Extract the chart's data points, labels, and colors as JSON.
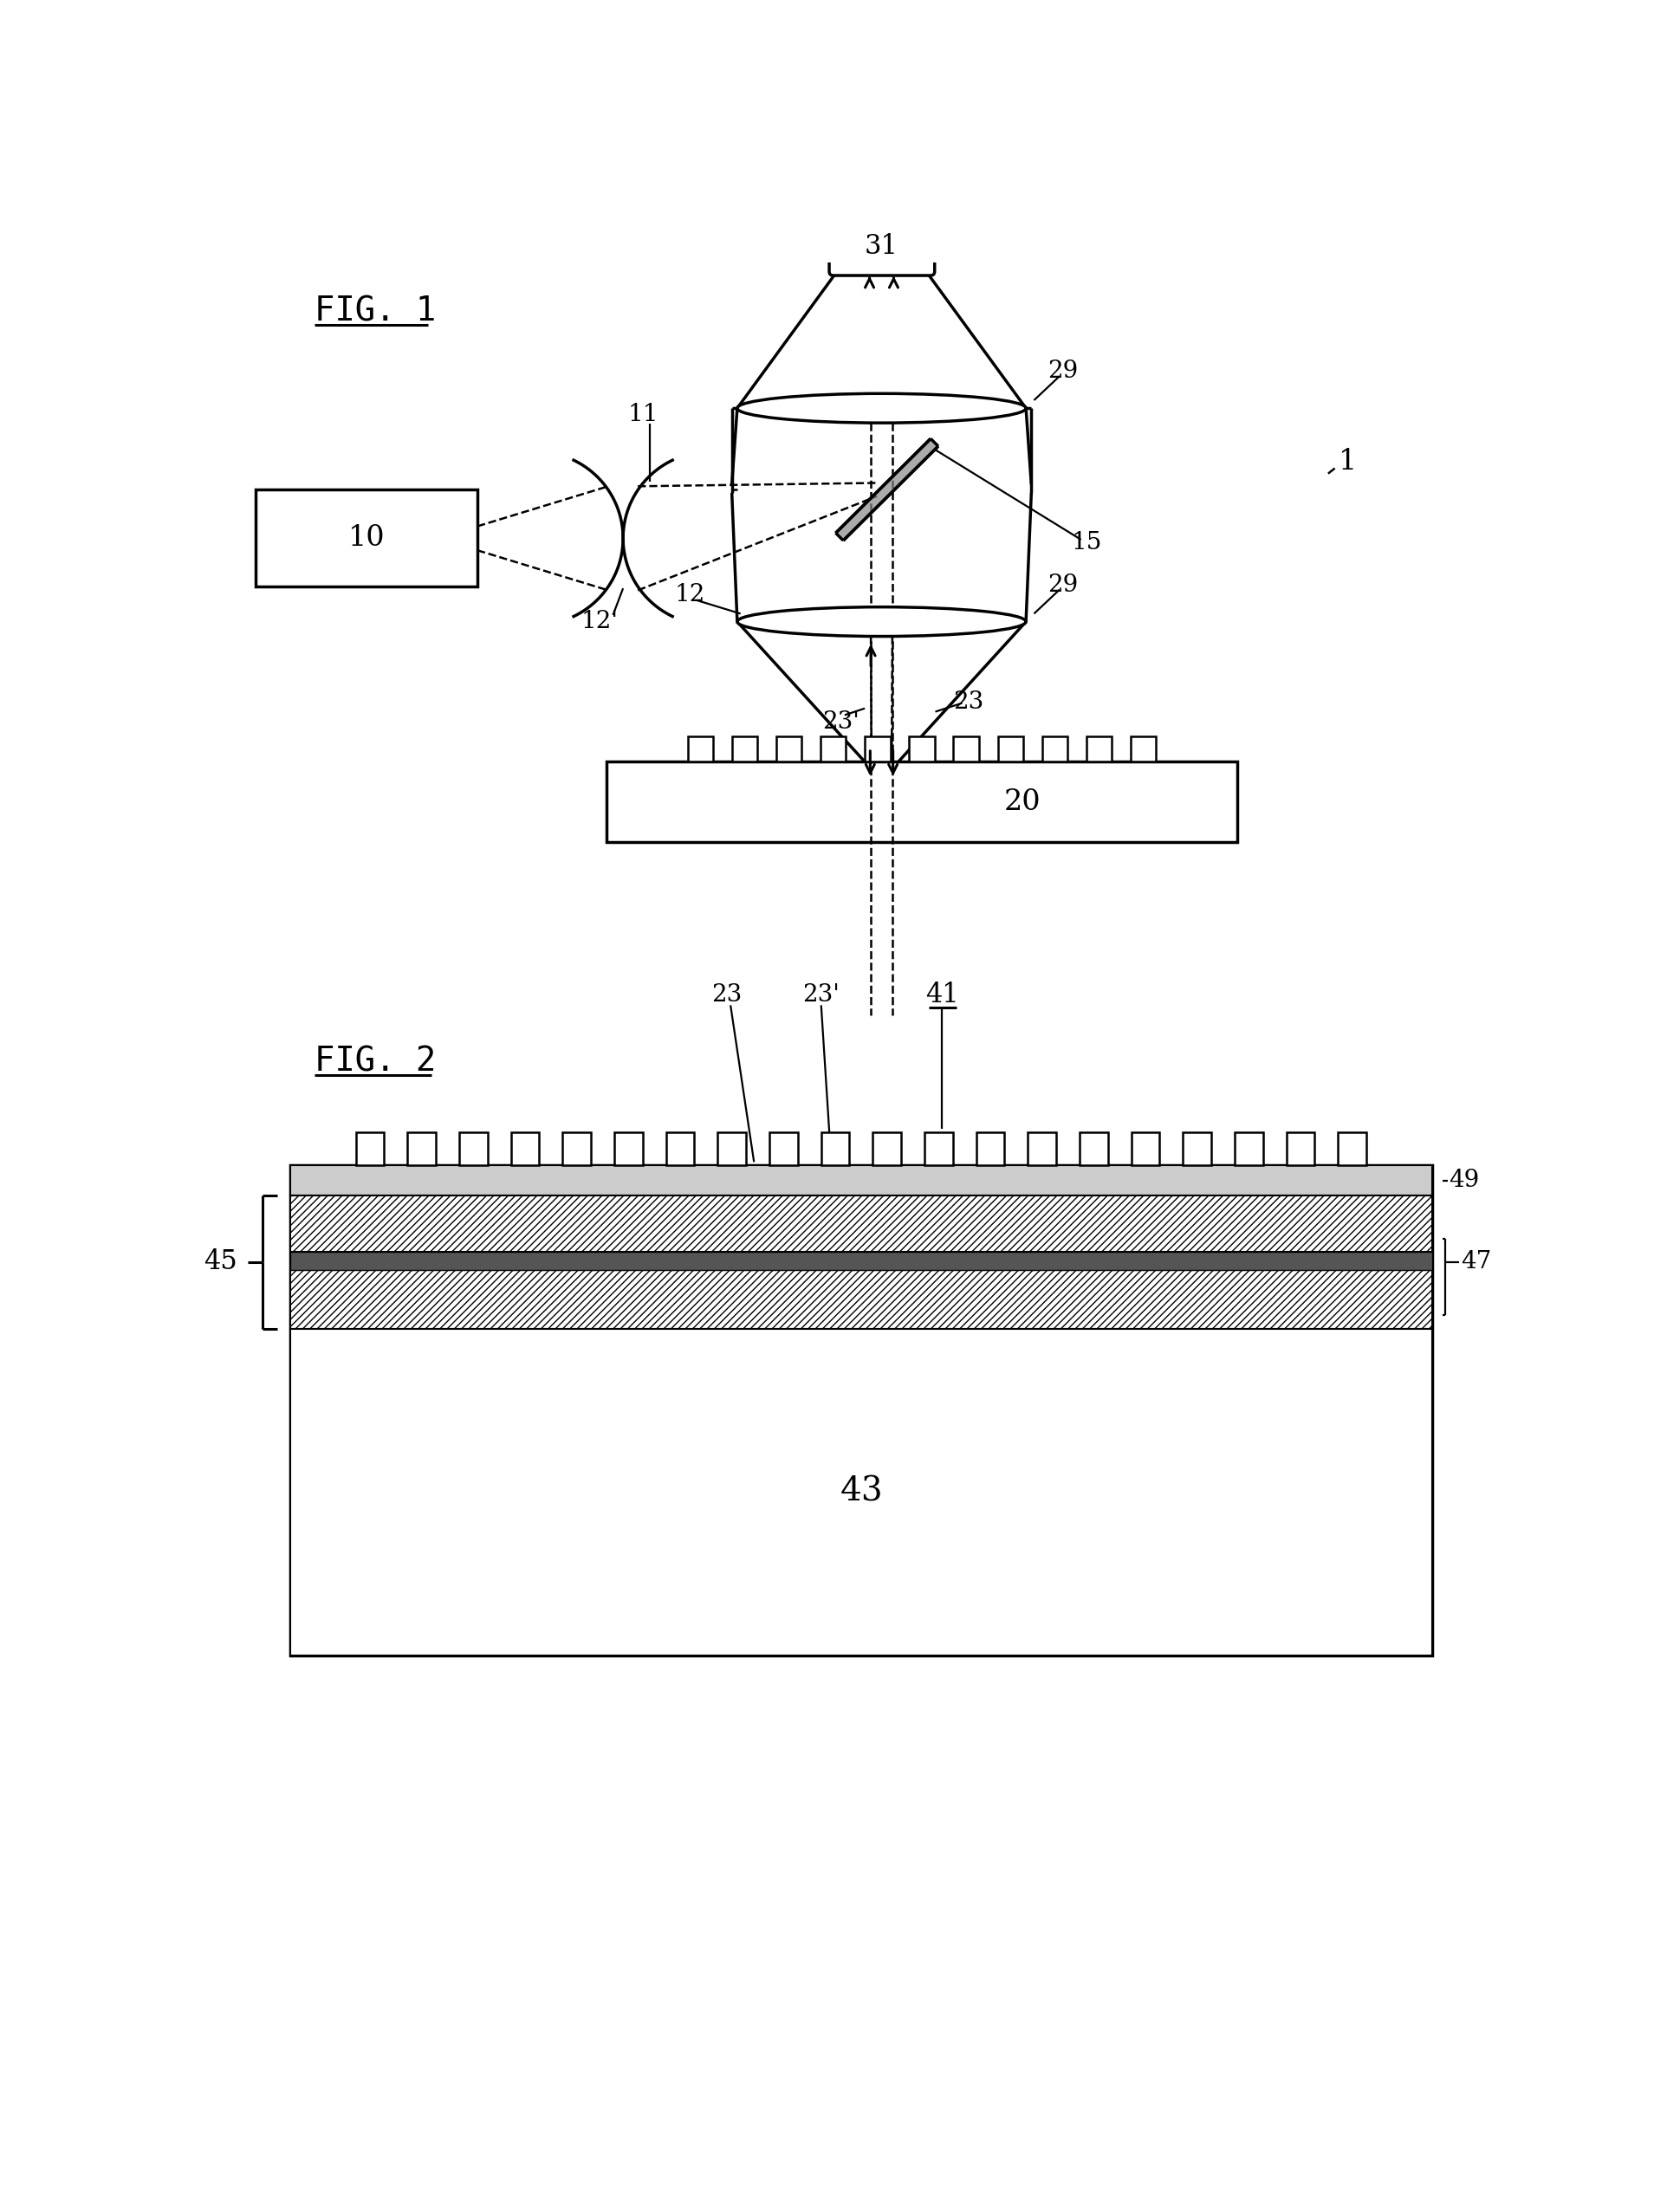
{
  "fig_width": 19.4,
  "fig_height": 25.28,
  "bg_color": "#ffffff",
  "label_1": "1",
  "label_10": "10",
  "label_11": "11",
  "label_12": "12",
  "label_12p": "12'",
  "label_15": "15",
  "label_20": "20",
  "label_23": "23",
  "label_23p": "23'",
  "label_29a": "29",
  "label_29b": "29",
  "label_31": "31",
  "label_41": "41",
  "label_43": "43",
  "label_45": "45",
  "label_47": "47",
  "label_49": "49",
  "fig1_title": "FIG. 1",
  "fig2_title": "FIG. 2"
}
